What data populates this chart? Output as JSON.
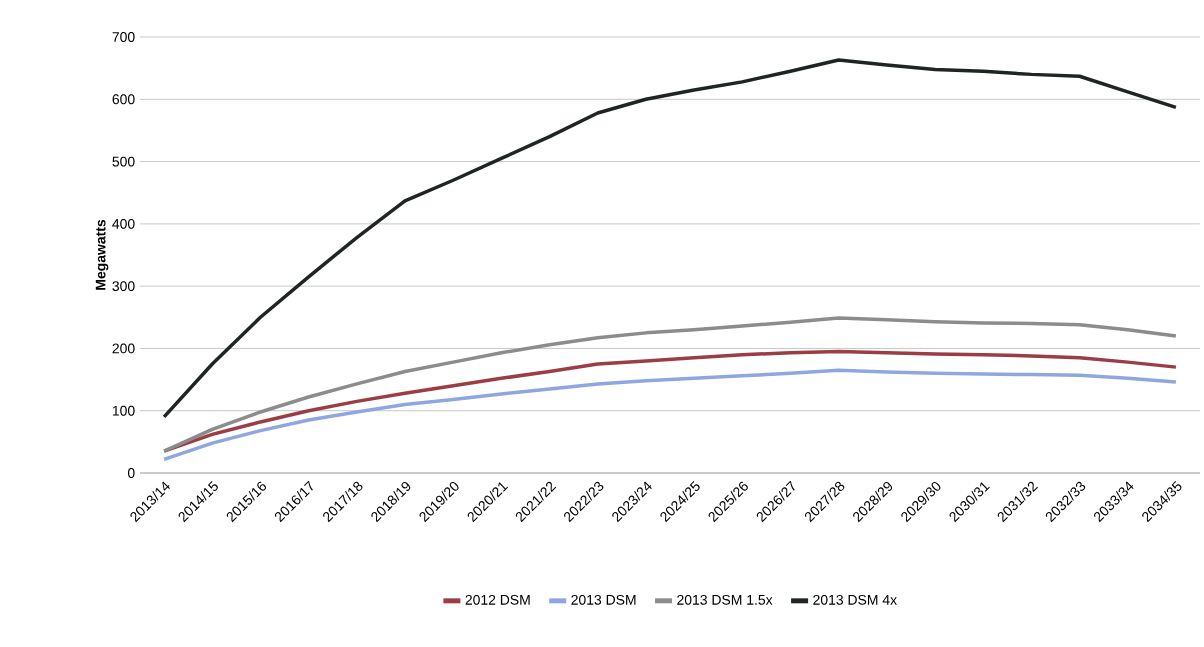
{
  "chart_data": {
    "type": "line",
    "ylabel": "Megawatts",
    "categories": [
      "2013/14",
      "2014/15",
      "2015/16",
      "2016/17",
      "2017/18",
      "2018/19",
      "2019/20",
      "2020/21",
      "2021/22",
      "2022/23",
      "2023/24",
      "2024/25",
      "2025/26",
      "2026/27",
      "2027/28",
      "2028/29",
      "2029/30",
      "2030/31",
      "2031/32",
      "2032/33",
      "2033/34",
      "2034/35"
    ],
    "series": [
      {
        "name": "2012 DSM",
        "color": "#9b3d44",
        "values": [
          35,
          62,
          82,
          100,
          115,
          128,
          140,
          152,
          163,
          175,
          180,
          185,
          190,
          193,
          195,
          193,
          191,
          190,
          188,
          185,
          178,
          170
        ]
      },
      {
        "name": "2013 DSM",
        "color": "#8fa7e0",
        "values": [
          22,
          48,
          68,
          85,
          98,
          110,
          118,
          127,
          135,
          143,
          148,
          152,
          156,
          160,
          165,
          162,
          160,
          159,
          158,
          157,
          152,
          146
        ]
      },
      {
        "name": "2013 DSM 1.5x",
        "color": "#8c8c8c",
        "values": [
          35,
          70,
          98,
          122,
          143,
          163,
          178,
          193,
          206,
          217,
          225,
          230,
          236,
          242,
          249,
          246,
          243,
          241,
          240,
          238,
          230,
          220
        ]
      },
      {
        "name": "2013 DSM 4x",
        "color": "#1f2524",
        "values": [
          90,
          175,
          250,
          315,
          378,
          437,
          470,
          505,
          540,
          578,
          600,
          615,
          628,
          645,
          663,
          655,
          648,
          645,
          640,
          637,
          612,
          587
        ]
      }
    ],
    "ylim": [
      0,
      700
    ],
    "yticks": [
      0,
      100,
      200,
      300,
      400,
      500,
      600,
      700
    ],
    "grid": "y",
    "legend": "bottom",
    "marker": "none",
    "line_style": "solid"
  }
}
